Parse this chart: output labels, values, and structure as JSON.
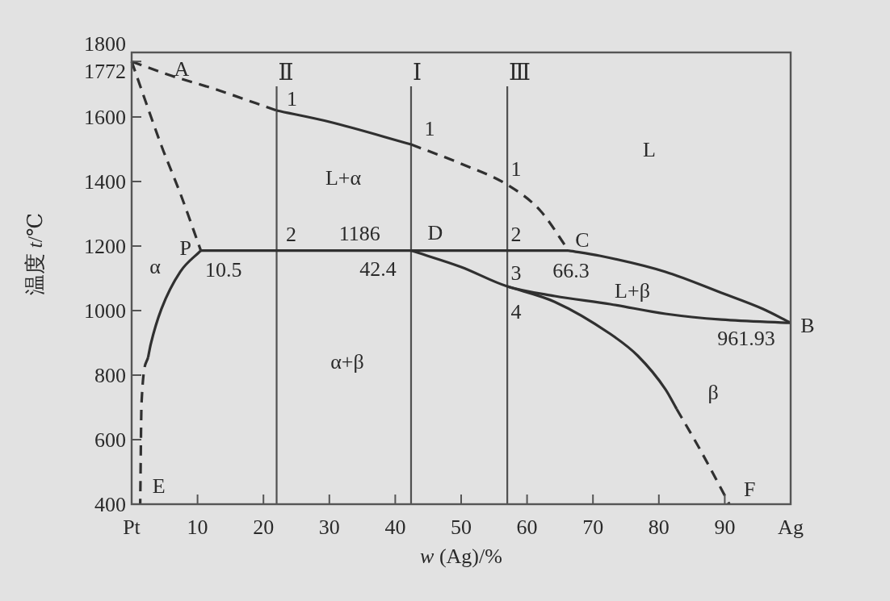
{
  "chart_data": {
    "type": "line",
    "xlabel": "*w* (Ag)/%",
    "ylabel": "温度 *t*/℃",
    "xlim": [
      0,
      100
    ],
    "ylim": [
      400,
      1800
    ],
    "xticks": [
      {
        "value": 0,
        "label": "Pt"
      },
      10,
      20,
      30,
      40,
      50,
      60,
      70,
      80,
      90,
      {
        "value": 100,
        "label": "Ag"
      }
    ],
    "yticks": [
      400,
      600,
      800,
      1000,
      1200,
      1400,
      1600,
      1772,
      1800
    ],
    "series": [
      {
        "color": "#303030",
        "line_style": "dashed",
        "x": [
          0,
          6,
          12.7,
          22
        ],
        "values": [
          1772,
          1728,
          1686,
          1620
        ]
      },
      {
        "color": "#303030",
        "line_style": "solid",
        "x": [
          22,
          30,
          42.4
        ],
        "values": [
          1620,
          1585,
          1515
        ]
      },
      {
        "color": "#303030",
        "line_style": "dashed",
        "x": [
          42.4,
          50,
          57,
          62,
          66.3
        ],
        "values": [
          1515,
          1455,
          1390,
          1310,
          1186
        ]
      },
      {
        "color": "#303030",
        "line_style": "solid",
        "x": [
          10.5,
          66.3
        ],
        "values": [
          1186,
          1186
        ]
      },
      {
        "color": "#303030",
        "line_style": "solid",
        "x": [
          66.3,
          71,
          81,
          89.5,
          95.8,
          100
        ],
        "values": [
          1186,
          1170,
          1120,
          1055,
          1005,
          961.93
        ]
      },
      {
        "color": "#303030",
        "line_style": "solid",
        "x": [
          42.4,
          50,
          57,
          64.2,
          72.6,
          81,
          89.5,
          100
        ],
        "values": [
          1186,
          1135,
          1075,
          1045,
          1020,
          990,
          972,
          961.93
        ]
      },
      {
        "color": "#303030",
        "line_style": "solid",
        "x": [
          57,
          64.2,
          72.6,
          76.8,
          81,
          82.7
        ],
        "values": [
          1075,
          1027,
          928,
          860,
          756,
          695
        ]
      },
      {
        "color": "#303030",
        "line_style": "dashed",
        "x": [
          82.7,
          86.1,
          90.7
        ],
        "values": [
          695,
          575,
          400
        ]
      },
      {
        "color": "#303030",
        "line_style": "dashed",
        "x": [
          0,
          4.5,
          7.4,
          10.5
        ],
        "values": [
          1772,
          1512,
          1362,
          1186
        ]
      },
      {
        "color": "#303030",
        "line_style": "solid",
        "x": [
          10.5,
          7.4,
          4.5,
          2.9,
          2.5
        ],
        "values": [
          1186,
          1121,
          1004,
          896,
          855
        ]
      },
      {
        "color": "#303030",
        "line_style": "dashed",
        "x": [
          2.5,
          1.5,
          1.3
        ],
        "values": [
          855,
          712,
          400
        ]
      }
    ],
    "ref_lines": [
      {
        "axis": "x",
        "value": 22,
        "label": "Ⅱ",
        "color": "#505050"
      },
      {
        "axis": "x",
        "value": 42.4,
        "label": "Ⅰ",
        "color": "#505050"
      },
      {
        "axis": "x",
        "value": 57,
        "label": "Ⅲ",
        "color": "#505050"
      }
    ],
    "annotations": [
      {
        "text": "A",
        "x": 0,
        "y": 1772
      },
      {
        "text": "1",
        "x": 22,
        "y": 1620
      },
      "L+α",
      {
        "text": "2",
        "x": 22,
        "y": 1186
      },
      {
        "text": "1186",
        "x": 34.6,
        "y": 1186
      },
      {
        "text": "P",
        "x": 10.5,
        "y": 1186
      },
      "α",
      {
        "text": "10.5",
        "x": 10.5,
        "y": 1186
      },
      {
        "text": "42.4",
        "x": 42.4,
        "y": 1186
      },
      {
        "text": "D",
        "x": 42.4,
        "y": 1186
      },
      {
        "text": "1",
        "x": 42.4,
        "y": 1515
      },
      {
        "text": "1",
        "x": 57,
        "y": 1390
      },
      "L",
      {
        "text": "2",
        "x": 57,
        "y": 1186
      },
      {
        "text": "C",
        "x": 66.3,
        "y": 1186
      },
      {
        "text": "66.3",
        "x": 66.3,
        "y": 1186
      },
      {
        "text": "3",
        "x": 57,
        "y": 1075
      },
      "L+β",
      {
        "text": "4",
        "x": 57,
        "y": 1075
      },
      {
        "text": "B",
        "x": 100,
        "y": 961.93
      },
      {
        "text": "961.93",
        "x": 100,
        "y": 961.93
      },
      "α+β",
      "β",
      {
        "text": "E",
        "x": 1.3,
        "y": 400
      },
      {
        "text": "F",
        "x": 90.7,
        "y": 400
      }
    ]
  }
}
